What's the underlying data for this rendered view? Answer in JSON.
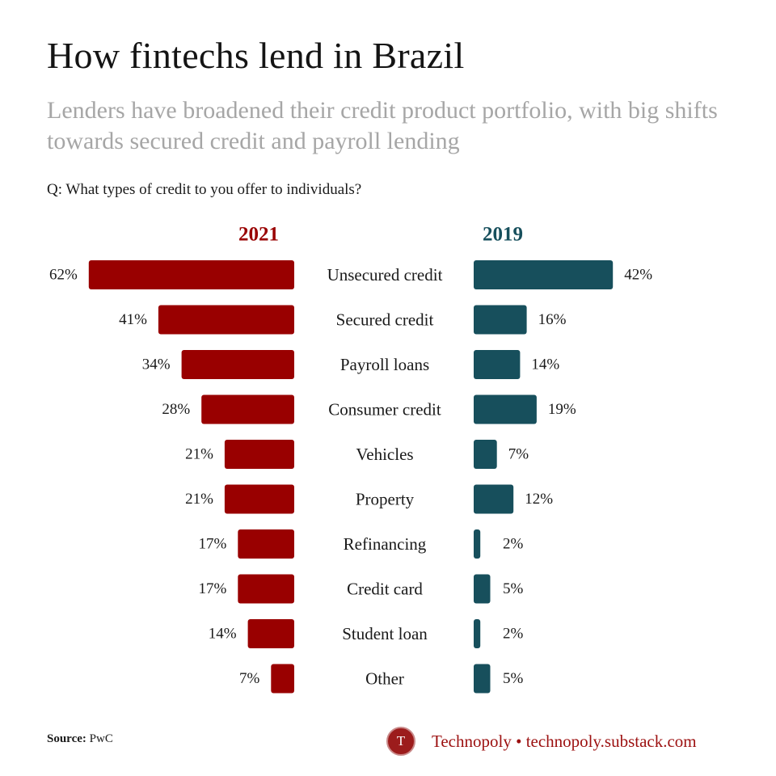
{
  "title": "How fintechs lend in Brazil",
  "subtitle": "Lenders have broadened their credit product portfolio, with big shifts towards secured credit and payroll lending",
  "question": "Q: What types of credit to you offer to individuals?",
  "footer": {
    "source_label": "Source:",
    "source_value": "PwC",
    "logo_letter": "T",
    "brand_name": "Technopoly",
    "brand_separator": "•",
    "brand_url": "technopoly.substack.com"
  },
  "colors": {
    "series_2021": "#990000",
    "series_2019": "#174f5c",
    "brand": "#9c1010"
  },
  "chart_data": {
    "type": "bar",
    "orientation": "horizontal-butterfly",
    "categories": [
      "Unsecured credit",
      "Secured credit",
      "Payroll loans",
      "Consumer credit",
      "Vehicles",
      "Property",
      "Refinancing",
      "Credit card",
      "Student loan",
      "Other"
    ],
    "series": [
      {
        "name": "2021",
        "values": [
          62,
          41,
          34,
          28,
          21,
          21,
          17,
          17,
          14,
          7
        ],
        "labels": [
          "62%",
          "41%",
          "34%",
          "28%",
          "21%",
          "21%",
          "17%",
          "17%",
          "14%",
          "7%"
        ]
      },
      {
        "name": "2019",
        "values": [
          42,
          16,
          14,
          19,
          7,
          12,
          2,
          5,
          2,
          5
        ],
        "labels": [
          "42%",
          "16%",
          "14%",
          "19%",
          "7%",
          "12%",
          "2%",
          "5%",
          "2%",
          "5%"
        ]
      }
    ],
    "unit": "%",
    "grid": false,
    "legend": "series names as column headers above bars"
  }
}
